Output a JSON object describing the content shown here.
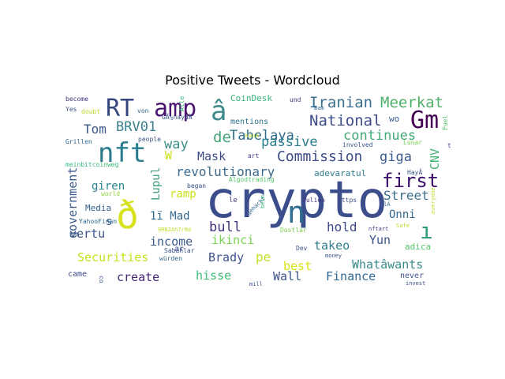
{
  "title": "Positive Tweets - Wordcloud",
  "words": [
    {
      "text": "crypto",
      "color": "#3b4d8a"
    },
    {
      "text": "ð",
      "color": "#d6e21f"
    },
    {
      "text": "n",
      "color": "#2e6b8e"
    },
    {
      "text": "RT",
      "color": "#35467f"
    },
    {
      "text": "amp",
      "color": "#4a1470"
    },
    {
      "text": "â",
      "color": "#3c8a8c"
    },
    {
      "text": "nft",
      "color": "#2a7b8c"
    },
    {
      "text": "Gm",
      "color": "#440154"
    },
    {
      "text": "first",
      "color": "#3a0f6b"
    },
    {
      "text": "ı",
      "color": "#2d9b78"
    },
    {
      "text": "Iranian",
      "color": "#3a6f8e"
    },
    {
      "text": "Meerkat",
      "color": "#4fb06a"
    },
    {
      "text": "National",
      "color": "#3e4c8a"
    },
    {
      "text": "wo",
      "color": "#3b5b8c"
    },
    {
      "text": "BRV01",
      "color": "#39808e"
    },
    {
      "text": "Tabelaya",
      "color": "#2f6d8e"
    },
    {
      "text": "de",
      "color": "#44a77a"
    },
    {
      "text": "Tom",
      "color": "#3b5a8b"
    },
    {
      "text": "way",
      "color": "#3c8f89"
    },
    {
      "text": "W",
      "color": "#cfe11d"
    },
    {
      "text": "continues",
      "color": "#42ab75"
    },
    {
      "text": "passive",
      "color": "#277e8e"
    },
    {
      "text": "Mask",
      "color": "#3d4c88"
    },
    {
      "text": "Commission",
      "color": "#3e4d89"
    },
    {
      "text": "giga",
      "color": "#3b5a8b"
    },
    {
      "text": "CNV",
      "color": "#42b473"
    },
    {
      "text": "revolutionary",
      "color": "#3b6a8d"
    },
    {
      "text": "Lupul",
      "color": "#3d9b82"
    },
    {
      "text": "government",
      "color": "#3b5b8a"
    },
    {
      "text": "giren",
      "color": "#2c858d"
    },
    {
      "text": "ramp",
      "color": "#cde11d"
    },
    {
      "text": "adevaratul",
      "color": "#2d7b8e"
    },
    {
      "text": "Street",
      "color": "#3a6f8d"
    },
    {
      "text": "s",
      "color": "#3a5a8a"
    },
    {
      "text": "1ï Mad",
      "color": "#31688e"
    },
    {
      "text": "Onni",
      "color": "#31688e"
    },
    {
      "text": "Media",
      "color": "#34608d"
    },
    {
      "text": "bull",
      "color": "#46327e"
    },
    {
      "text": "hold",
      "color": "#3f4b89"
    },
    {
      "text": "vertu",
      "color": "#3b528b"
    },
    {
      "text": "income",
      "color": "#38598c"
    },
    {
      "text": "ikinci",
      "color": "#7ad151"
    },
    {
      "text": "takeo",
      "color": "#2f7f8e"
    },
    {
      "text": "Yun",
      "color": "#3b528b"
    },
    {
      "text": "Securities",
      "color": "#c8e020"
    },
    {
      "text": "Brady",
      "color": "#3b528b"
    },
    {
      "text": "pe",
      "color": "#c0df25"
    },
    {
      "text": "best",
      "color": "#d8e219"
    },
    {
      "text": "Whatâwants",
      "color": "#3a8a8c"
    },
    {
      "text": "hisse",
      "color": "#3dbc74"
    },
    {
      "text": "Wall",
      "color": "#3b528b"
    },
    {
      "text": "Finance",
      "color": "#31688e"
    },
    {
      "text": "create",
      "color": "#482777"
    },
    {
      "text": "came",
      "color": "#3e4a89"
    },
    {
      "text": "never",
      "color": "#3b528b"
    },
    {
      "text": "adica",
      "color": "#52c569"
    },
    {
      "text": "mentions",
      "color": "#2c728e"
    },
    {
      "text": "CoinDesk",
      "color": "#35b779"
    },
    {
      "text": "und",
      "color": "#46327e"
    },
    {
      "text": "Lunar",
      "color": "#7ad151"
    },
    {
      "text": "Fuel",
      "color": "#52c569"
    },
    {
      "text": "involved",
      "color": "#3b528b"
    },
    {
      "text": "art",
      "color": "#46327e"
    },
    {
      "text": "people",
      "color": "#3b528b"
    },
    {
      "text": "Grillen",
      "color": "#31688e"
    },
    {
      "text": "meinbitcoinweg",
      "color": "#35b779"
    },
    {
      "text": "world",
      "color": "#90d743"
    },
    {
      "text": "YahooFinan",
      "color": "#31688e"
    },
    {
      "text": "began",
      "color": "#3b528b"
    },
    {
      "text": "https",
      "color": "#3e4a89"
    },
    {
      "text": "Julien",
      "color": "#46327e"
    },
    {
      "text": "Dev",
      "color": "#3b528b"
    },
    {
      "text": "Dostlar",
      "color": "#7ad151"
    },
    {
      "text": "Sabahlar",
      "color": "#3b528b"
    },
    {
      "text": "Algodtrading",
      "color": "#52c569"
    },
    {
      "text": "become",
      "color": "#46327e"
    },
    {
      "text": "Yes",
      "color": "#3b528b"
    },
    {
      "text": "von",
      "color": "#31688e"
    },
    {
      "text": "doubt",
      "color": "#b8de29"
    },
    {
      "text": "GÃ¼naydÄ",
      "color": "#3b528b"
    },
    {
      "text": "Alle",
      "color": "#35b779"
    },
    {
      "text": "KanÃ",
      "color": "#b8de29"
    },
    {
      "text": "Bam",
      "color": "#31688e"
    },
    {
      "text": "HayÃ",
      "color": "#3b528b"
    },
    {
      "text": "t",
      "color": "#3b528b"
    },
    {
      "text": "le",
      "color": "#46327e"
    },
    {
      "text": "Safe",
      "color": "#b8de29"
    },
    {
      "text": "everyone",
      "color": "#b8de29"
    },
    {
      "text": "gehackt",
      "color": "#31688e"
    },
    {
      "text": "beim",
      "color": "#35b779"
    },
    {
      "text": "rlÃ",
      "color": "#31688e"
    },
    {
      "text": "nftart",
      "color": "#46327e"
    },
    {
      "text": "ar",
      "color": "#3b528b"
    },
    {
      "text": "9RN2Ah7r8d",
      "color": "#b8de29"
    },
    {
      "text": "würden",
      "color": "#31688e"
    },
    {
      "text": "money",
      "color": "#3b528b"
    },
    {
      "text": "mill",
      "color": "#3b528b"
    },
    {
      "text": "co",
      "color": "#3b528b"
    },
    {
      "text": "invest",
      "color": "#3b528b"
    }
  ]
}
